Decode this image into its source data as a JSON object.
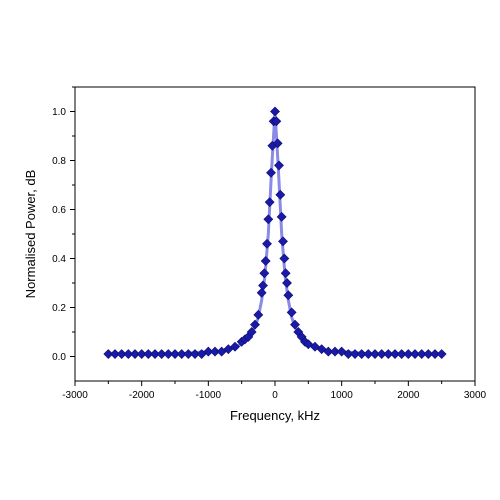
{
  "chart_data": {
    "type": "scatter",
    "title": "",
    "xlabel": "Frequency, kHz",
    "ylabel": "Normalised Power, dB",
    "xlim": [
      -3000,
      3000
    ],
    "ylim": [
      -0.1,
      1.1
    ],
    "x_ticks": [
      -3000,
      -2000,
      -1000,
      0,
      1000,
      2000,
      3000
    ],
    "y_ticks": [
      0.0,
      0.2,
      0.4,
      0.6,
      0.8,
      1.0
    ],
    "x_tick_labels": [
      "-3000",
      "-2000",
      "-1000",
      "0",
      "1000",
      "2000",
      "3000"
    ],
    "y_tick_labels": [
      "0.0",
      "0.2",
      "0.4",
      "0.6",
      "0.8",
      "1.0"
    ],
    "grid": false,
    "series": [
      {
        "kind": "markers",
        "marker": "diamond",
        "color": "#1a1aa8",
        "x": [
          -2500,
          -2400,
          -2300,
          -2200,
          -2100,
          -2000,
          -1900,
          -1800,
          -1700,
          -1600,
          -1500,
          -1400,
          -1300,
          -1200,
          -1100,
          -1000,
          -900,
          -800,
          -700,
          -600,
          -500,
          -450,
          -400,
          -350,
          -300,
          -250,
          -200,
          -180,
          -160,
          -140,
          -120,
          -100,
          -80,
          -60,
          -40,
          -20,
          0,
          20,
          40,
          60,
          80,
          100,
          120,
          140,
          160,
          180,
          200,
          250,
          300,
          350,
          400,
          450,
          500,
          600,
          700,
          800,
          900,
          1000,
          1100,
          1200,
          1300,
          1400,
          1500,
          1600,
          1700,
          1800,
          1900,
          2000,
          2100,
          2200,
          2300,
          2400,
          2500
        ],
        "y": [
          0.01,
          0.01,
          0.01,
          0.01,
          0.01,
          0.01,
          0.01,
          0.01,
          0.01,
          0.01,
          0.01,
          0.01,
          0.01,
          0.01,
          0.01,
          0.02,
          0.02,
          0.02,
          0.03,
          0.04,
          0.06,
          0.07,
          0.08,
          0.1,
          0.13,
          0.17,
          0.26,
          0.29,
          0.34,
          0.39,
          0.46,
          0.56,
          0.63,
          0.75,
          0.86,
          0.96,
          1.0,
          0.96,
          0.87,
          0.78,
          0.66,
          0.57,
          0.47,
          0.4,
          0.34,
          0.3,
          0.25,
          0.18,
          0.13,
          0.1,
          0.08,
          0.06,
          0.05,
          0.04,
          0.03,
          0.02,
          0.02,
          0.02,
          0.01,
          0.01,
          0.01,
          0.01,
          0.01,
          0.01,
          0.01,
          0.01,
          0.01,
          0.01,
          0.01,
          0.01,
          0.01,
          0.01,
          0.01
        ]
      },
      {
        "kind": "line",
        "color": "#8a8ae8",
        "x": [
          -2500,
          -2000,
          -1500,
          -1000,
          -800,
          -600,
          -500,
          -400,
          -300,
          -250,
          -200,
          -150,
          -100,
          -50,
          0,
          50,
          100,
          150,
          200,
          250,
          300,
          400,
          500,
          600,
          800,
          1000,
          1500,
          2000,
          2500
        ],
        "y": [
          0.01,
          0.01,
          0.01,
          0.02,
          0.02,
          0.04,
          0.05,
          0.08,
          0.12,
          0.16,
          0.23,
          0.33,
          0.5,
          0.77,
          1.0,
          0.77,
          0.5,
          0.33,
          0.23,
          0.16,
          0.12,
          0.08,
          0.05,
          0.04,
          0.02,
          0.02,
          0.01,
          0.01,
          0.01
        ]
      }
    ]
  }
}
